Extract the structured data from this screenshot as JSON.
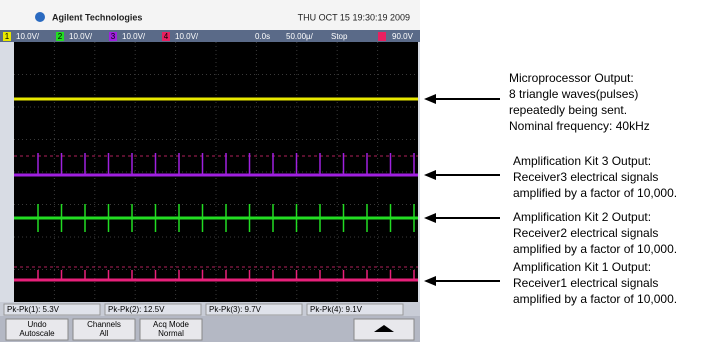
{
  "header": {
    "brand": "Agilent Technologies",
    "datetime": "THU OCT 15 19:30:19 2009"
  },
  "status_bar": {
    "channels": [
      {
        "number": "1",
        "scale": "10.0V/"
      },
      {
        "number": "2",
        "scale": "10.0V/"
      },
      {
        "number": "3",
        "scale": "10.0V/"
      },
      {
        "number": "4",
        "scale": "10.0V/"
      }
    ],
    "time_delay": "0.0s",
    "time_scale": "50.00µ/",
    "run_state": "Stop",
    "trigger_level": "90.0V"
  },
  "measurements": [
    "Pk-Pk(1): 5.3V",
    "Pk-Pk(2): 12.5V",
    "Pk-Pk(3): 9.7V",
    "Pk-Pk(4): 9.1V"
  ],
  "softkeys": [
    {
      "lines": [
        "Undo",
        "Autoscale"
      ]
    },
    {
      "lines": [
        "Channels",
        "All"
      ]
    },
    {
      "lines": [
        "Acq Mode",
        "Normal"
      ]
    }
  ],
  "annotations": [
    {
      "lines": [
        "Microprocessor Output:",
        "8 triangle waves(pulses)",
        "repeatedly being sent.",
        "Nominal frequency: 40kHz"
      ]
    },
    {
      "lines": [
        "Amplification Kit 3 Output:",
        "Receiver3 electrical signals",
        "amplified by a factor of 10,000."
      ]
    },
    {
      "lines": [
        "Amplification Kit 2 Output:",
        "Receiver2 electrical signals",
        "amplified by a factor of 10,000."
      ]
    },
    {
      "lines": [
        "Amplification Kit 1 Output:",
        "Receiver1 electrical signals",
        "amplified by a factor of 10,000."
      ]
    }
  ]
}
